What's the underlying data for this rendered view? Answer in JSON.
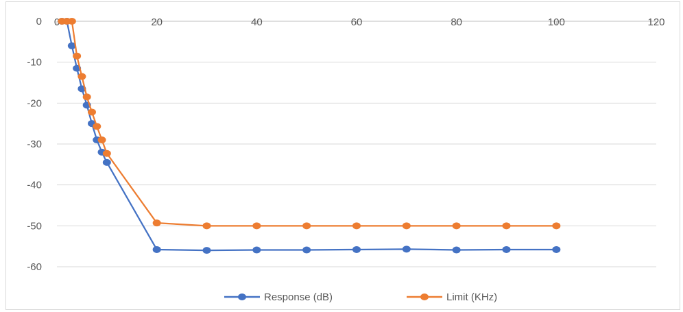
{
  "chart_data": {
    "type": "line",
    "title": "",
    "xlabel": "",
    "ylabel": "",
    "xlim": [
      0,
      120
    ],
    "ylim": [
      -60,
      0
    ],
    "x_ticks": [
      0,
      20,
      40,
      60,
      80,
      100,
      120
    ],
    "y_ticks": [
      0,
      -10,
      -20,
      -30,
      -40,
      -50,
      -60
    ],
    "x_tick_labels": [
      "0",
      "20",
      "40",
      "60",
      "80",
      "100",
      "120"
    ],
    "y_tick_labels": [
      "0",
      "-10",
      "-20",
      "-30",
      "-40",
      "-50",
      "-60"
    ],
    "grid": {
      "horizontal": true,
      "vertical": false
    },
    "x_axis_position": "top",
    "legend_position": "bottom",
    "series": [
      {
        "name": "Response (dB)",
        "color": "#4472c4",
        "points": [
          [
            1,
            0
          ],
          [
            2,
            0
          ],
          [
            3,
            -6
          ],
          [
            4,
            -11.5
          ],
          [
            5,
            -16.5
          ],
          [
            6,
            -20.5
          ],
          [
            7,
            -25
          ],
          [
            8,
            -29
          ],
          [
            9,
            -32
          ],
          [
            10,
            -34.5
          ],
          [
            20,
            -55.8
          ],
          [
            30,
            -56
          ],
          [
            40,
            -55.9
          ],
          [
            50,
            -55.9
          ],
          [
            60,
            -55.8
          ],
          [
            70,
            -55.7
          ],
          [
            80,
            -55.9
          ],
          [
            90,
            -55.8
          ],
          [
            100,
            -55.8
          ]
        ]
      },
      {
        "name": "Limit (KHz)",
        "color": "#ed7d31",
        "points": [
          [
            1,
            0
          ],
          [
            2,
            0
          ],
          [
            3,
            0
          ],
          [
            4,
            -8.5
          ],
          [
            5,
            -13.5
          ],
          [
            6,
            -18.5
          ],
          [
            7,
            -22.2
          ],
          [
            8,
            -25.7
          ],
          [
            9,
            -29
          ],
          [
            10,
            -32.3
          ],
          [
            20,
            -49.3
          ],
          [
            30,
            -50
          ],
          [
            40,
            -50
          ],
          [
            50,
            -50
          ],
          [
            60,
            -50
          ],
          [
            70,
            -50
          ],
          [
            80,
            -50
          ],
          [
            90,
            -50
          ],
          [
            100,
            -50
          ]
        ]
      }
    ]
  }
}
